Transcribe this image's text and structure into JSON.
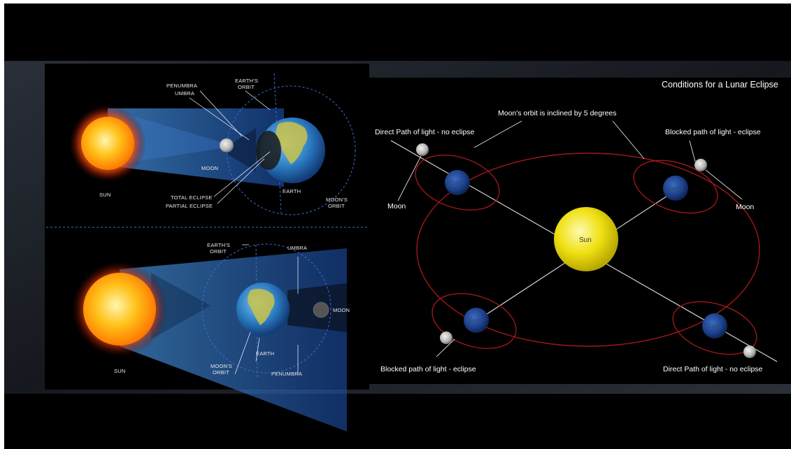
{
  "title": "Conditions for a Lunar Eclipse",
  "top_diagram": {
    "penumbra": "PENUMBRA",
    "umbra": "UMBRA",
    "earths_orbit": [
      "EARTH'S",
      "ORBIT"
    ],
    "moon": "MOON",
    "sun": "SUN",
    "total_eclipse": "TOTAL ECLIPSE",
    "partial_eclipse": "PARTIAL ECLIPSE",
    "earth": "EARTH",
    "moons_orbit": [
      "MOON'S",
      "ORBIT"
    ]
  },
  "bottom_diagram": {
    "earths_orbit": [
      "EARTH'S",
      "ORBIT"
    ],
    "umbra": "UMBRA",
    "moon": "MOON",
    "sun": "SUN",
    "earth": "EARTH",
    "moons_orbit": [
      "MOON'S",
      "ORBIT"
    ],
    "penumbra": "PENUMBRA"
  },
  "right_diagram": {
    "sun": "Sun",
    "earth_label": "Earth",
    "moon_label": "Moon",
    "inclined_note": "Moon's orbit is inclined by 5 degrees",
    "direct_no_eclipse": "Direct Path of light - no eclipse",
    "blocked_eclipse": "Blocked path of light - eclipse",
    "colors": {
      "orbit": "#a01818",
      "sun": "#f2e410",
      "earth": "#1c3f86",
      "moon": "#bdbdbd"
    }
  }
}
